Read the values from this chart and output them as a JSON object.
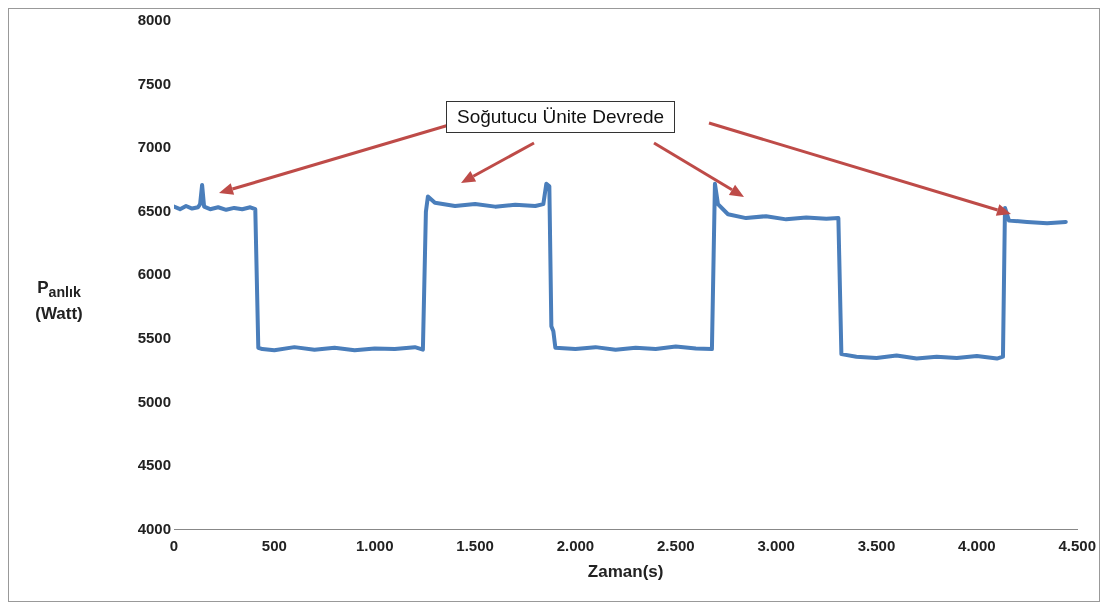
{
  "chart_data": {
    "type": "line",
    "xlabel": "Zaman(s)",
    "ylabel": "P$_{anlık}$ (Watt)",
    "annotations": [
      "Soğutucu Ünite Devrede"
    ],
    "xlim": [
      0,
      4500
    ],
    "xticks": [
      0,
      500,
      {
        "value": 1000,
        "label": "1.000"
      },
      {
        "value": 1500,
        "label": "1.500"
      },
      {
        "value": 2000,
        "label": "2.000"
      },
      {
        "value": 2500,
        "label": "2.500"
      },
      {
        "value": 3000,
        "label": "3.000"
      },
      {
        "value": 3500,
        "label": "3.500"
      },
      {
        "value": 4000,
        "label": "4.000"
      },
      {
        "value": 4500,
        "label": "4.500"
      }
    ],
    "ylim": [
      4000,
      8000
    ],
    "yticks": [
      4000,
      4500,
      5000,
      5500,
      6000,
      6500,
      7000,
      7500,
      8000
    ],
    "grid": false,
    "legend": false,
    "marker": "none",
    "line_style": "solid",
    "series": [
      {
        "color": "#4a7ebb",
        "x": [
          0,
          30,
          60,
          90,
          120,
          130,
          140,
          150,
          180,
          220,
          260,
          300,
          340,
          380,
          405,
          420,
          440,
          500,
          600,
          700,
          800,
          900,
          1000,
          1100,
          1200,
          1240,
          1255,
          1265,
          1300,
          1400,
          1500,
          1600,
          1700,
          1800,
          1840,
          1855,
          1870,
          1880,
          1890,
          1900,
          2000,
          2100,
          2200,
          2300,
          2400,
          2500,
          2600,
          2680,
          2695,
          2710,
          2760,
          2850,
          2950,
          3050,
          3150,
          3250,
          3310,
          3325,
          3400,
          3500,
          3600,
          3700,
          3800,
          3900,
          4000,
          4100,
          4130,
          4140,
          4160,
          4250,
          4350,
          4443
        ],
        "values": [
          6540,
          6520,
          6545,
          6525,
          6535,
          6560,
          6710,
          6540,
          6520,
          6535,
          6515,
          6530,
          6520,
          6535,
          6520,
          5430,
          5420,
          5410,
          5435,
          5415,
          5430,
          5410,
          5425,
          5420,
          5435,
          5415,
          6500,
          6620,
          6570,
          6545,
          6560,
          6540,
          6555,
          6545,
          6560,
          6720,
          6700,
          5600,
          5560,
          5430,
          5420,
          5435,
          5415,
          5430,
          5420,
          5440,
          5425,
          5420,
          6720,
          6560,
          6480,
          6450,
          6465,
          6440,
          6455,
          6445,
          6450,
          5380,
          5360,
          5350,
          5370,
          5345,
          5360,
          5350,
          5365,
          5345,
          5360,
          6530,
          6430,
          6420,
          6410,
          6420
        ]
      }
    ]
  }
}
